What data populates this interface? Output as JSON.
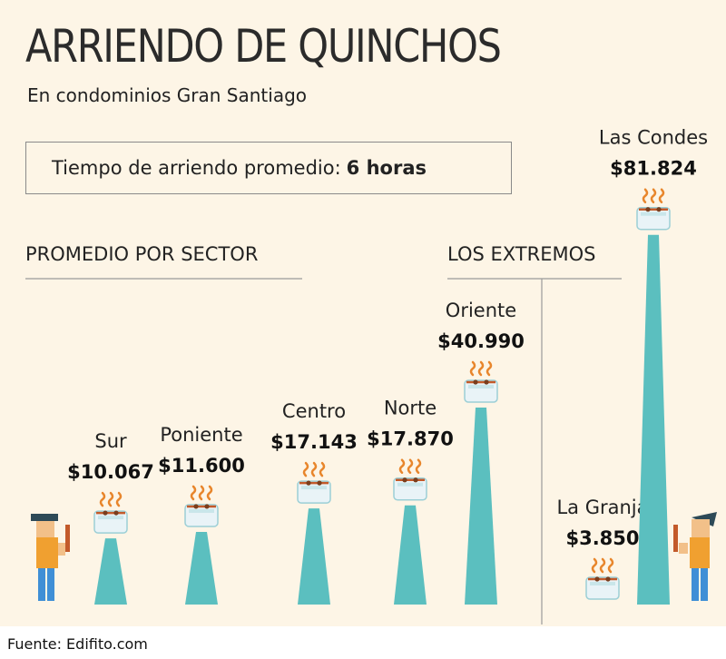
{
  "title": "ARRIENDO DE QUINCHOS",
  "subtitle": "En condominios Gran Santiago",
  "avg_label": "Tiempo de arriendo promedio:",
  "avg_value": "6 horas",
  "section_left": "PROMEDIO POR SECTOR",
  "section_right": "LOS EXTREMOS",
  "source": "Fuente: Edifito.com",
  "colors": {
    "background": "#fdf5e6",
    "bar": "#5bbfbf",
    "smoke": "#e8862c",
    "text": "#222222"
  },
  "chart_data": {
    "type": "bar",
    "unit": "CLP",
    "groups": [
      {
        "name": "PROMEDIO POR SECTOR",
        "categories": [
          "Sur",
          "Poniente",
          "Centro",
          "Norte",
          "Oriente"
        ],
        "values": [
          10067,
          11600,
          17143,
          17870,
          40990
        ],
        "labels": [
          "$10.067",
          "$11.600",
          "$17.143",
          "$17.870",
          "$40.990"
        ]
      },
      {
        "name": "LOS EXTREMOS",
        "categories": [
          "La Granja",
          "Las Condes"
        ],
        "values": [
          3850,
          81824
        ],
        "labels": [
          "$3.850",
          "$81.824"
        ]
      }
    ]
  }
}
